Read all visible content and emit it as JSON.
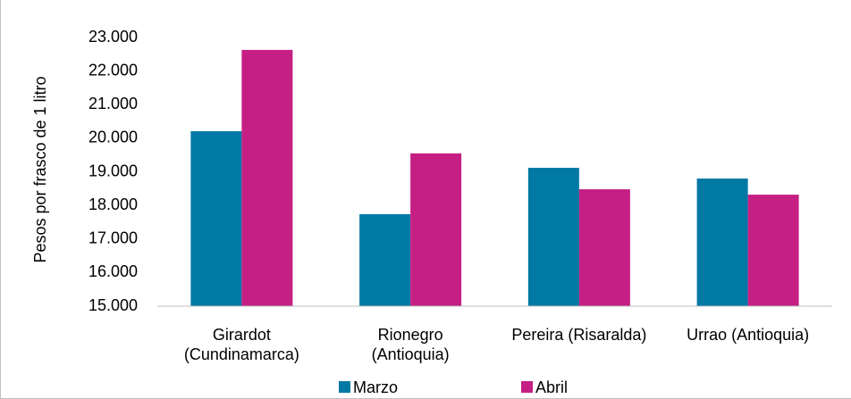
{
  "chart_data": {
    "type": "bar",
    "y_label": "Pesos por frasco de 1 litro",
    "categories": [
      "Girardot\n(Cundinamarca)",
      "Rionegro\n(Antioquia)",
      "Pereira (Risaralda)",
      "Urrao (Antioquia)"
    ],
    "series": [
      {
        "name": "Marzo",
        "color": "#0079a5",
        "values": [
          20210,
          17740,
          19120,
          18800
        ]
      },
      {
        "name": "Abril",
        "color": "#c51f83",
        "values": [
          22630,
          19550,
          18480,
          18320
        ]
      }
    ],
    "ylim": [
      15000,
      23000
    ],
    "yticks": [
      {
        "value": 15000,
        "label": "15.000"
      },
      {
        "value": 16000,
        "label": "16.000"
      },
      {
        "value": 17000,
        "label": "17.000"
      },
      {
        "value": 18000,
        "label": "18.000"
      },
      {
        "value": 19000,
        "label": "19.000"
      },
      {
        "value": 20000,
        "label": "20.000"
      },
      {
        "value": 21000,
        "label": "21.000"
      },
      {
        "value": 22000,
        "label": "22.000"
      },
      {
        "value": 23000,
        "label": "23.000"
      }
    ],
    "grid": false,
    "legend": "bottom"
  }
}
